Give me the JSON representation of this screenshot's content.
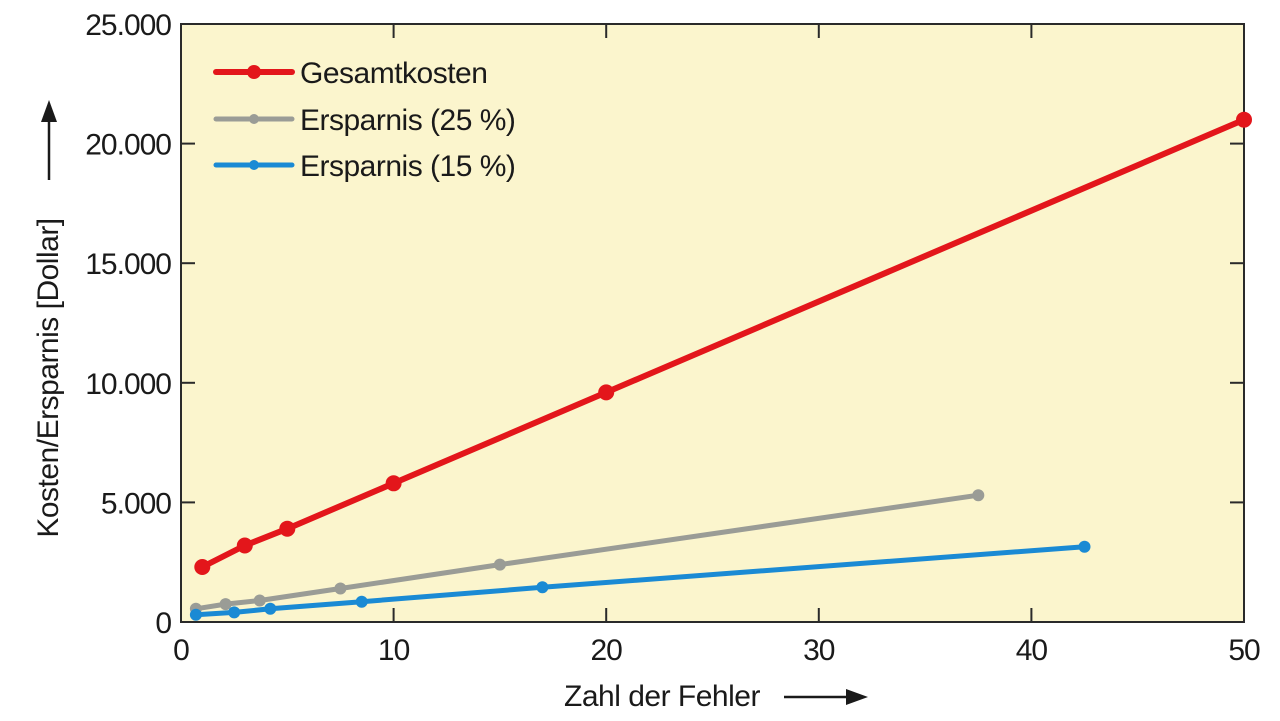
{
  "chart_data": {
    "type": "line",
    "title": "",
    "xlabel": "Zahl der Fehler",
    "ylabel": "Kosten/Ersparnis [Dollar]",
    "xlim": [
      0,
      50
    ],
    "ylim": [
      0,
      25000
    ],
    "x_ticks": [
      0,
      10,
      20,
      30,
      40,
      50
    ],
    "x_tick_labels": [
      "0",
      "10",
      "20",
      "30",
      "40",
      "50"
    ],
    "y_ticks": [
      0,
      5000,
      10000,
      15000,
      20000,
      25000
    ],
    "y_tick_labels": [
      "0",
      "5.000",
      "10.000",
      "15.000",
      "20.000",
      "25.000"
    ],
    "grid": false,
    "legend_position": "top-left",
    "background_color": "#fbf5cd",
    "series": [
      {
        "name": "Gesamtkosten",
        "color": "#e3161b",
        "points": [
          [
            1,
            2300
          ],
          [
            3,
            3200
          ],
          [
            5,
            3900
          ],
          [
            10,
            5800
          ],
          [
            20,
            9600
          ],
          [
            50,
            21000
          ]
        ]
      },
      {
        "name": "Ersparnis (25 %)",
        "color": "#9a9c96",
        "points": [
          [
            0.7,
            550
          ],
          [
            2.1,
            750
          ],
          [
            3.7,
            900
          ],
          [
            7.5,
            1400
          ],
          [
            15,
            2400
          ],
          [
            37.5,
            5300
          ]
        ]
      },
      {
        "name": "Ersparnis (15 %)",
        "color": "#1a8ad4",
        "points": [
          [
            0.7,
            300
          ],
          [
            2.5,
            400
          ],
          [
            4.2,
            550
          ],
          [
            8.5,
            850
          ],
          [
            17,
            1450
          ],
          [
            42.5,
            3150
          ]
        ]
      }
    ]
  }
}
